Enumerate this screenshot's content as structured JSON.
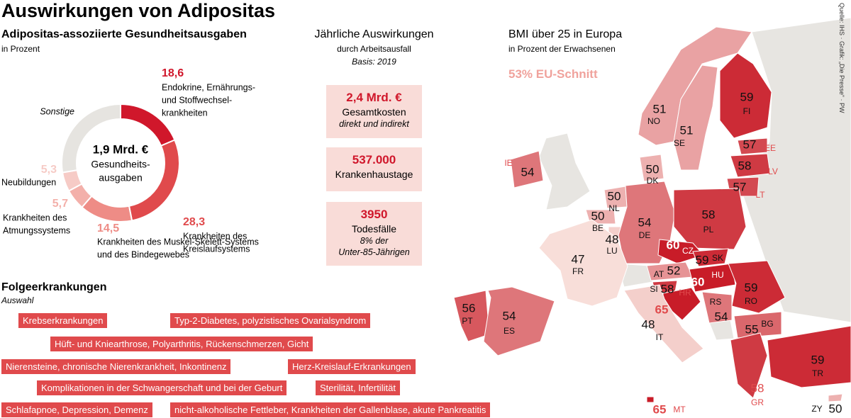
{
  "title": "Auswirkungen von Adipositas",
  "source": "Quelle: IHS · Grafik: „Die Presse“ · PW",
  "donut": {
    "title": "Adipositas-assoziierte Gesundheitsausgaben",
    "subtitle": "in Prozent",
    "center": [
      "1,9 Mrd. €",
      "Gesundheits-",
      "ausgaben"
    ],
    "segments": [
      {
        "value": 18.6,
        "value_label": "18,6",
        "lines": [
          "Endokrine, Ernährungs-",
          "und Stoffwechsel-",
          "krankheiten"
        ],
        "color": "#d0172b"
      },
      {
        "value": 28.3,
        "value_label": "28,3",
        "lines": [
          "Krankheiten des",
          "Kreislaufsystems"
        ],
        "color": "#e04a4c"
      },
      {
        "value": 14.5,
        "value_label": "14,5",
        "lines": [
          "Krankheiten des Muskel-Skelett-Systems",
          "und des Bindegewebes"
        ],
        "color": "#ee8c86"
      },
      {
        "value": 5.7,
        "value_label": "5,7",
        "lines": [
          "Krankheiten des",
          "Atmungssystems"
        ],
        "color": "#f3b0aa"
      },
      {
        "value": 5.3,
        "value_label": "5,3",
        "lines": [
          "Neubildungen"
        ],
        "color": "#f6cbc6"
      },
      {
        "value": 27.6,
        "lines": [
          "Sonstige"
        ],
        "color": "#e6e4e0"
      }
    ]
  },
  "impact": {
    "title": "Jährliche Auswirkungen",
    "subtitle": "durch Arbeitsausfall",
    "basis": "Basis: 2019",
    "boxes": [
      {
        "value": "2,4 Mrd. €",
        "label": "Gesamtkosten",
        "notes": [
          "direkt und indirekt"
        ]
      },
      {
        "value": "537.000",
        "label": "Krankenhaustage",
        "notes": []
      },
      {
        "value": "3950",
        "label": "Todesfälle",
        "notes": [
          "8% der",
          "Unter-85-Jährigen"
        ]
      }
    ]
  },
  "diseases": {
    "title": "Folgeerkrankungen",
    "subtitle": "Auswahl",
    "tags": [
      "Krebserkrankungen",
      "Typ-2-Diabetes, polyzistisches Ovarialsyndrom",
      "Hüft- und Kniearthrose, Polyarthritis, Rückenschmerzen, Gicht",
      "Nierensteine, chronische Nierenkrankheit, Inkontinenz",
      "Herz-Kreislauf-Erkrankungen",
      "Komplikationen in der Schwangerschaft und bei der Geburt",
      "Sterilität, Infertilität",
      "Schlafapnoe, Depression, Demenz",
      "nicht-alkoholische Fettleber, Krankheiten der Gallenblase, akute Pankreatitis"
    ]
  },
  "map": {
    "title": "BMI über 25 in Europa",
    "subtitle": "in Prozent der Erwachsenen",
    "eu_average": "53% EU-Schnitt",
    "countries": [
      {
        "code": "NO",
        "value": 51
      },
      {
        "code": "SE",
        "value": 51
      },
      {
        "code": "FI",
        "value": 59
      },
      {
        "code": "EE",
        "value": 57
      },
      {
        "code": "LV",
        "value": 58
      },
      {
        "code": "LT",
        "value": 57
      },
      {
        "code": "IE",
        "value": 54
      },
      {
        "code": "DK",
        "value": 50
      },
      {
        "code": "NL",
        "value": 50
      },
      {
        "code": "BE",
        "value": 50
      },
      {
        "code": "LU",
        "value": 48
      },
      {
        "code": "DE",
        "value": 54
      },
      {
        "code": "PL",
        "value": 58
      },
      {
        "code": "CZ",
        "value": 60
      },
      {
        "code": "SK",
        "value": 59
      },
      {
        "code": "FR",
        "value": 47
      },
      {
        "code": "AT",
        "value": 52
      },
      {
        "code": "HU",
        "value": 60
      },
      {
        "code": "SI",
        "value": 58
      },
      {
        "code": "HR",
        "value": 65
      },
      {
        "code": "RO",
        "value": 59
      },
      {
        "code": "RS",
        "value": 54
      },
      {
        "code": "BG",
        "value": 55
      },
      {
        "code": "PT",
        "value": 56
      },
      {
        "code": "ES",
        "value": 54
      },
      {
        "code": "IT",
        "value": 48
      },
      {
        "code": "MT",
        "value": 65
      },
      {
        "code": "GR",
        "value": 58
      },
      {
        "code": "TR",
        "value": 59
      },
      {
        "code": "ZY",
        "value": 50
      }
    ]
  }
}
